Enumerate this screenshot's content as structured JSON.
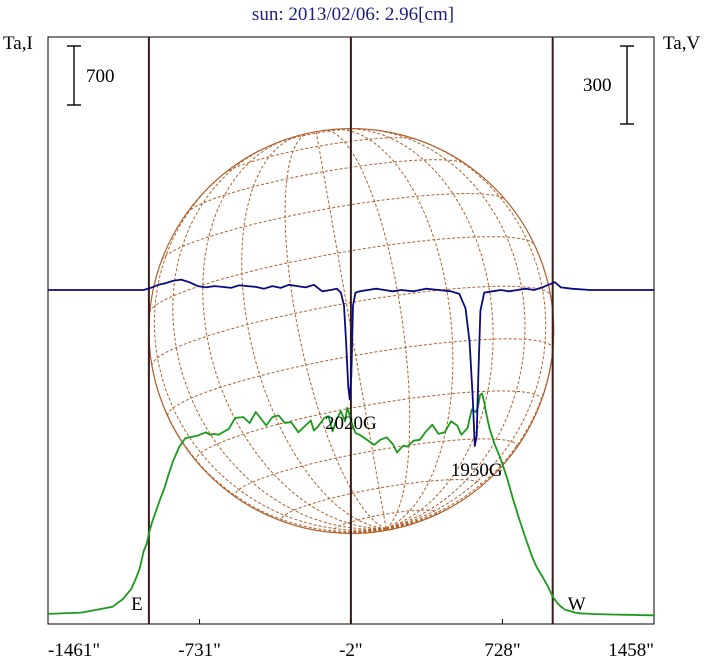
{
  "chart_data": {
    "type": "line",
    "title": "sun: 2013/02/06: 2.96[cm]",
    "left_axis_label": "Ta,I",
    "right_axis_label": "Ta,V",
    "left_scale_bar": {
      "label": "700",
      "value": 700
    },
    "right_scale_bar": {
      "label": "300",
      "value": 300
    },
    "x_tick_labels": [
      "-1461\"",
      "-731\"",
      "-2\"",
      "728\"",
      "1458\""
    ],
    "x_ticks": [
      -1461,
      -731,
      -2,
      728,
      1458
    ],
    "xlim": [
      -1461,
      1458
    ],
    "limb_markers": [
      {
        "label": "E",
        "x": -975
      },
      {
        "label": "W",
        "x": 970
      }
    ],
    "center_line_x": -2,
    "disk_radius_arcsec": 975,
    "annotations": [
      {
        "text": "2020G",
        "x": -2,
        "y_v": -420
      },
      {
        "text": "1950G",
        "x": 604,
        "y_v": -600
      }
    ],
    "colors": {
      "intensity": "#1a9a1a",
      "polarization": "#0a0a80",
      "grid": "#b0602a",
      "markers": "#3a1a1a",
      "title": "#1c1c80"
    },
    "series": [
      {
        "name": "Ta,I",
        "axis": "left",
        "x": [
          -1461,
          -1300,
          -1150,
          -1100,
          -1060,
          -1040,
          -1020,
          -1000,
          -985,
          -975,
          -960,
          -940,
          -920,
          -900,
          -880,
          -860,
          -830,
          -800,
          -770,
          -740,
          -700,
          -680,
          -660,
          -640,
          -590,
          -560,
          -520,
          -490,
          -460,
          -410,
          -380,
          -350,
          -320,
          -290,
          -255,
          -225,
          -195,
          -180,
          -160,
          -130,
          -110,
          -90,
          -70,
          -50,
          -30,
          -20,
          -10,
          5,
          20,
          40,
          70,
          110,
          140,
          170,
          200,
          220,
          250,
          270,
          300,
          330,
          360,
          390,
          420,
          450,
          480,
          510,
          530,
          560,
          580,
          600,
          610,
          620,
          630,
          640,
          650,
          665,
          690,
          720,
          750,
          780,
          810,
          840,
          870,
          895,
          920,
          945,
          970,
          990,
          1010,
          1030,
          1050,
          1075,
          1100,
          1130,
          1180,
          1250,
          1330,
          1400,
          1458
        ],
        "values": [
          25,
          40,
          110,
          200,
          320,
          430,
          560,
          770,
          860,
          980,
          1110,
          1250,
          1390,
          1520,
          1680,
          1830,
          2000,
          2110,
          2125,
          2140,
          2180,
          2150,
          2160,
          2150,
          2220,
          2350,
          2360,
          2290,
          2420,
          2260,
          2360,
          2380,
          2290,
          2300,
          2180,
          2250,
          2320,
          2200,
          2250,
          2350,
          2370,
          2190,
          2340,
          2430,
          2310,
          2470,
          2400,
          2270,
          2170,
          2150,
          2100,
          2030,
          2090,
          2120,
          2040,
          1940,
          2020,
          2010,
          2080,
          2090,
          2190,
          2270,
          2160,
          2180,
          2310,
          2260,
          2150,
          2230,
          2450,
          2420,
          2480,
          2620,
          2640,
          2540,
          2400,
          2230,
          2040,
          1860,
          1640,
          1380,
          1140,
          920,
          710,
          570,
          470,
          360,
          230,
          160,
          110,
          75,
          60,
          42,
          32,
          28,
          22,
          18,
          14,
          10,
          8
        ]
      },
      {
        "name": "Ta,V",
        "axis": "right",
        "x": [
          -1461,
          -1300,
          -1000,
          -960,
          -930,
          -900,
          -860,
          -820,
          -780,
          -740,
          -700,
          -660,
          -620,
          -580,
          -540,
          -500,
          -460,
          -420,
          -380,
          -340,
          -300,
          -260,
          -220,
          -180,
          -140,
          -100,
          -70,
          -50,
          -35,
          -25,
          -15,
          -8,
          0,
          8,
          20,
          40,
          80,
          120,
          160,
          200,
          240,
          300,
          360,
          420,
          480,
          520,
          550,
          570,
          585,
          595,
          604,
          612,
          622,
          640,
          680,
          720,
          760,
          800,
          840,
          880,
          920,
          950,
          980,
          1010,
          1060,
          1150,
          1300,
          1458
        ],
        "values": [
          0,
          0,
          0,
          10,
          20,
          25,
          35,
          40,
          30,
          15,
          10,
          15,
          12,
          8,
          18,
          15,
          12,
          5,
          15,
          8,
          20,
          15,
          10,
          20,
          -5,
          0,
          5,
          -10,
          -60,
          -200,
          -370,
          -420,
          -330,
          -60,
          -10,
          -5,
          0,
          5,
          0,
          -5,
          0,
          -5,
          5,
          0,
          -5,
          -15,
          -70,
          -200,
          -420,
          -600,
          -560,
          -320,
          -80,
          -10,
          -5,
          0,
          -5,
          0,
          5,
          0,
          10,
          20,
          30,
          10,
          5,
          0,
          0,
          0
        ]
      }
    ]
  }
}
